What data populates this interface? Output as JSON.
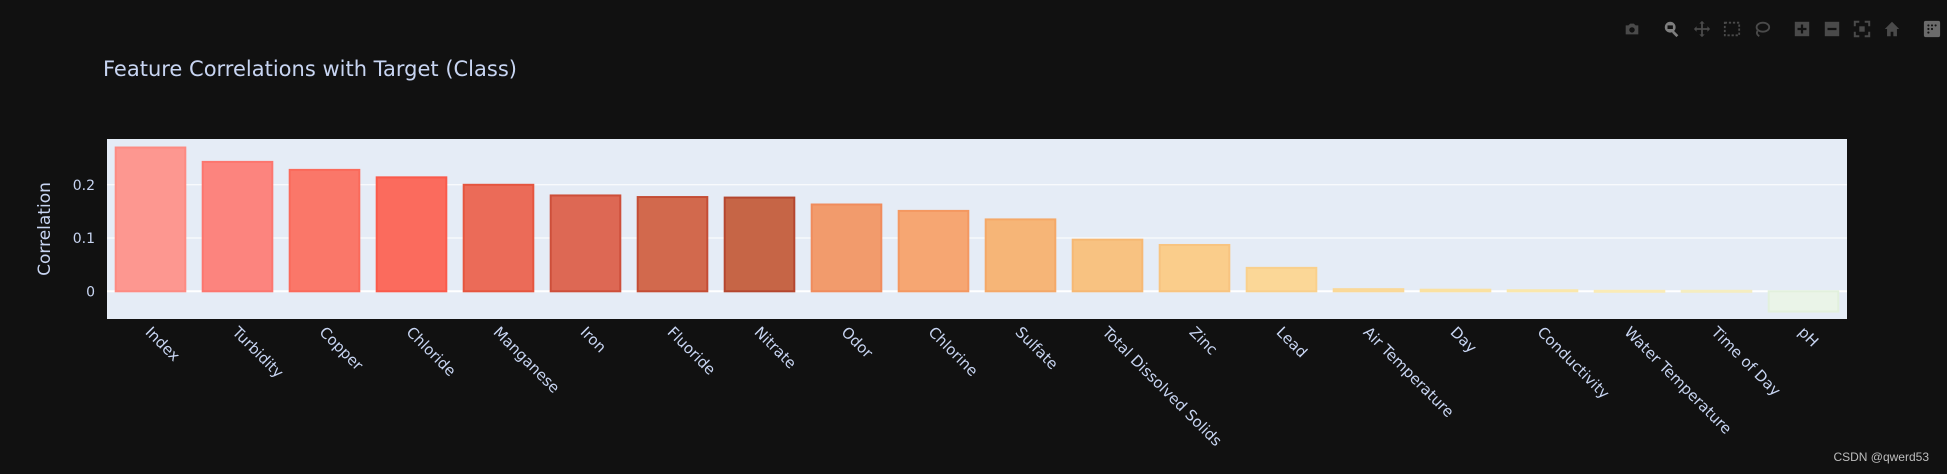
{
  "chart_data": {
    "type": "bar",
    "title": "Feature Correlations with Target (Class)",
    "ylabel": "Correlation",
    "xlabel": "",
    "categories": [
      "Index",
      "Turbidity",
      "Copper",
      "Chloride",
      "Manganese",
      "Iron",
      "Fluoride",
      "Nitrate",
      "Odor",
      "Chlorine",
      "Sulfate",
      "Total Dissolved Solids",
      "Zinc",
      "Lead",
      "Air Temperature",
      "Day",
      "Conductivity",
      "Water Temperature",
      "Time of Day",
      "pH"
    ],
    "values": [
      0.27,
      0.243,
      0.228,
      0.214,
      0.2,
      0.18,
      0.177,
      0.176,
      0.163,
      0.151,
      0.135,
      0.097,
      0.087,
      0.044,
      0.004,
      0.003,
      0.002,
      0.001,
      0.001,
      -0.038
    ],
    "yticks": [
      0,
      0.1,
      0.2
    ],
    "ylim": [
      -0.052,
      0.286
    ],
    "grid": true,
    "colors": [
      "#fd9790",
      "#fc847e",
      "#fa7769",
      "#fb6b5d",
      "#eb6b58",
      "#dd6854",
      "#d2694d",
      "#c66546",
      "#f29b6c",
      "#f6a672",
      "#f6b577",
      "#f8c281",
      "#facd8b",
      "#fbd797",
      "#fbdf9f",
      "#fbe6a8",
      "#fbecb2",
      "#fbefbc",
      "#f7f0c5",
      "#eaf4e8"
    ],
    "outline_colors": [
      "#fd8b83",
      "#fc766f",
      "#fa6a5b",
      "#fa5a4b",
      "#e5553f",
      "#cd4f3a",
      "#c44d35",
      "#b4462f",
      "#f08c5d",
      "#f49861",
      "#f4a868",
      "#f6b874",
      "#f8c480",
      "#f9d08c",
      "#fad897",
      "#fae1a1",
      "#fae7ab",
      "#faebb6",
      "#f5edc0",
      "#e2f0dd"
    ],
    "plot_bg": "#e5ecf6",
    "paper_bg": "#111111",
    "text_color": "#c8d5f2"
  },
  "watermark": "CSDN @qwerd53",
  "modebar": {
    "buttons": [
      "camera-icon",
      "zoom-icon",
      "pan-icon",
      "box-select-icon",
      "lasso-icon",
      "zoom-in-icon",
      "zoom-out-icon",
      "autoscale-icon",
      "home-icon",
      "plotly-logo-icon"
    ]
  }
}
